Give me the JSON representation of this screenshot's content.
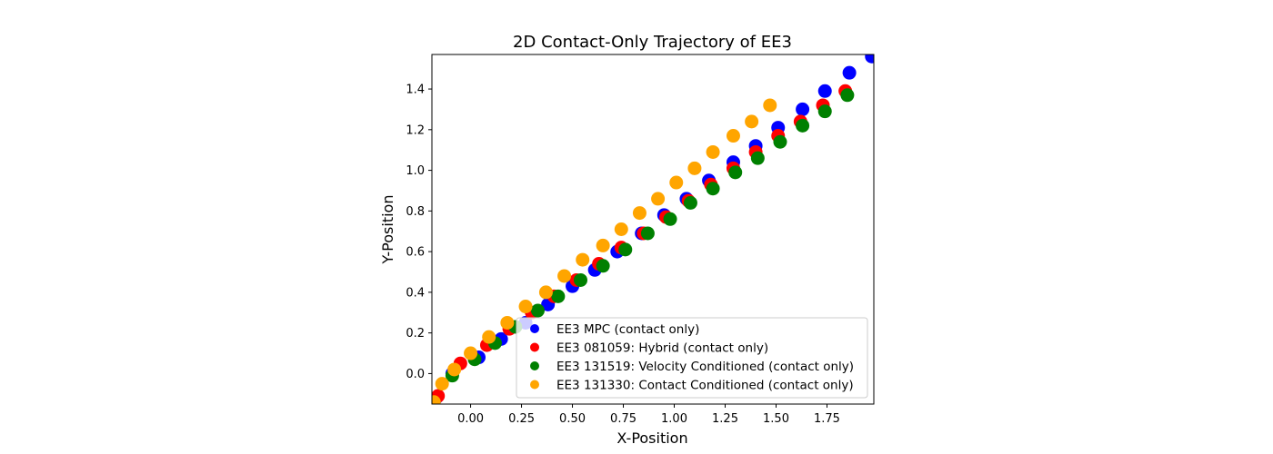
{
  "chart_data": {
    "type": "scatter",
    "title": "2D Contact-Only Trajectory of EE3",
    "xlabel": "X-Position",
    "ylabel": "Y-Position",
    "xlim": [
      -0.19,
      1.98
    ],
    "ylim": [
      -0.15,
      1.57
    ],
    "xticks": [
      0.0,
      0.25,
      0.5,
      0.75,
      1.0,
      1.25,
      1.5,
      1.75
    ],
    "xtick_labels": [
      "0.00",
      "0.25",
      "0.50",
      "0.75",
      "1.00",
      "1.25",
      "1.50",
      "1.75"
    ],
    "yticks": [
      0.0,
      0.2,
      0.4,
      0.6,
      0.8,
      1.0,
      1.2,
      1.4
    ],
    "ytick_labels": [
      "0.0",
      "0.2",
      "0.4",
      "0.6",
      "0.8",
      "1.0",
      "1.2",
      "1.4"
    ],
    "grid": false,
    "legend_position": "lower-right",
    "series": [
      {
        "name": "EE3 MPC (contact only)",
        "color": "#0000ff",
        "x": [
          -0.17,
          -0.09,
          0.04,
          0.15,
          0.27,
          0.38,
          0.5,
          0.61,
          0.72,
          0.84,
          0.95,
          1.06,
          1.17,
          1.29,
          1.4,
          1.51,
          1.63,
          1.74,
          1.86,
          1.97
        ],
        "y": [
          -0.12,
          0.0,
          0.08,
          0.17,
          0.25,
          0.34,
          0.43,
          0.51,
          0.6,
          0.69,
          0.78,
          0.86,
          0.95,
          1.04,
          1.12,
          1.21,
          1.3,
          1.39,
          1.48,
          1.56
        ]
      },
      {
        "name": "EE3 081059: Hybrid (contact only)",
        "color": "#ff0000",
        "x": [
          -0.16,
          -0.05,
          0.08,
          0.19,
          0.3,
          0.41,
          0.52,
          0.63,
          0.74,
          0.85,
          0.96,
          1.07,
          1.18,
          1.29,
          1.4,
          1.51,
          1.62,
          1.73,
          1.84
        ],
        "y": [
          -0.11,
          0.05,
          0.14,
          0.22,
          0.3,
          0.38,
          0.46,
          0.54,
          0.62,
          0.69,
          0.77,
          0.85,
          0.93,
          1.01,
          1.09,
          1.17,
          1.24,
          1.32,
          1.39
        ]
      },
      {
        "name": "EE3 131519: Velocity Conditioned (contact only)",
        "color": "#008000",
        "x": [
          -0.09,
          0.02,
          0.12,
          0.22,
          0.33,
          0.43,
          0.54,
          0.65,
          0.76,
          0.87,
          0.98,
          1.08,
          1.19,
          1.3,
          1.41,
          1.52,
          1.63,
          1.74,
          1.85
        ],
        "y": [
          -0.01,
          0.07,
          0.15,
          0.23,
          0.31,
          0.38,
          0.46,
          0.53,
          0.61,
          0.69,
          0.76,
          0.84,
          0.91,
          0.99,
          1.06,
          1.14,
          1.22,
          1.29,
          1.37
        ]
      },
      {
        "name": "EE3 131330: Contact Conditioned (contact only)",
        "color": "#ffa500",
        "x": [
          -0.18,
          -0.14,
          -0.08,
          0.0,
          0.09,
          0.18,
          0.27,
          0.37,
          0.46,
          0.55,
          0.65,
          0.74,
          0.83,
          0.92,
          1.01,
          1.1,
          1.19,
          1.29,
          1.38,
          1.47
        ],
        "y": [
          -0.14,
          -0.05,
          0.02,
          0.1,
          0.18,
          0.25,
          0.33,
          0.4,
          0.48,
          0.56,
          0.63,
          0.71,
          0.79,
          0.86,
          0.94,
          1.01,
          1.09,
          1.17,
          1.24,
          1.32
        ]
      }
    ]
  }
}
